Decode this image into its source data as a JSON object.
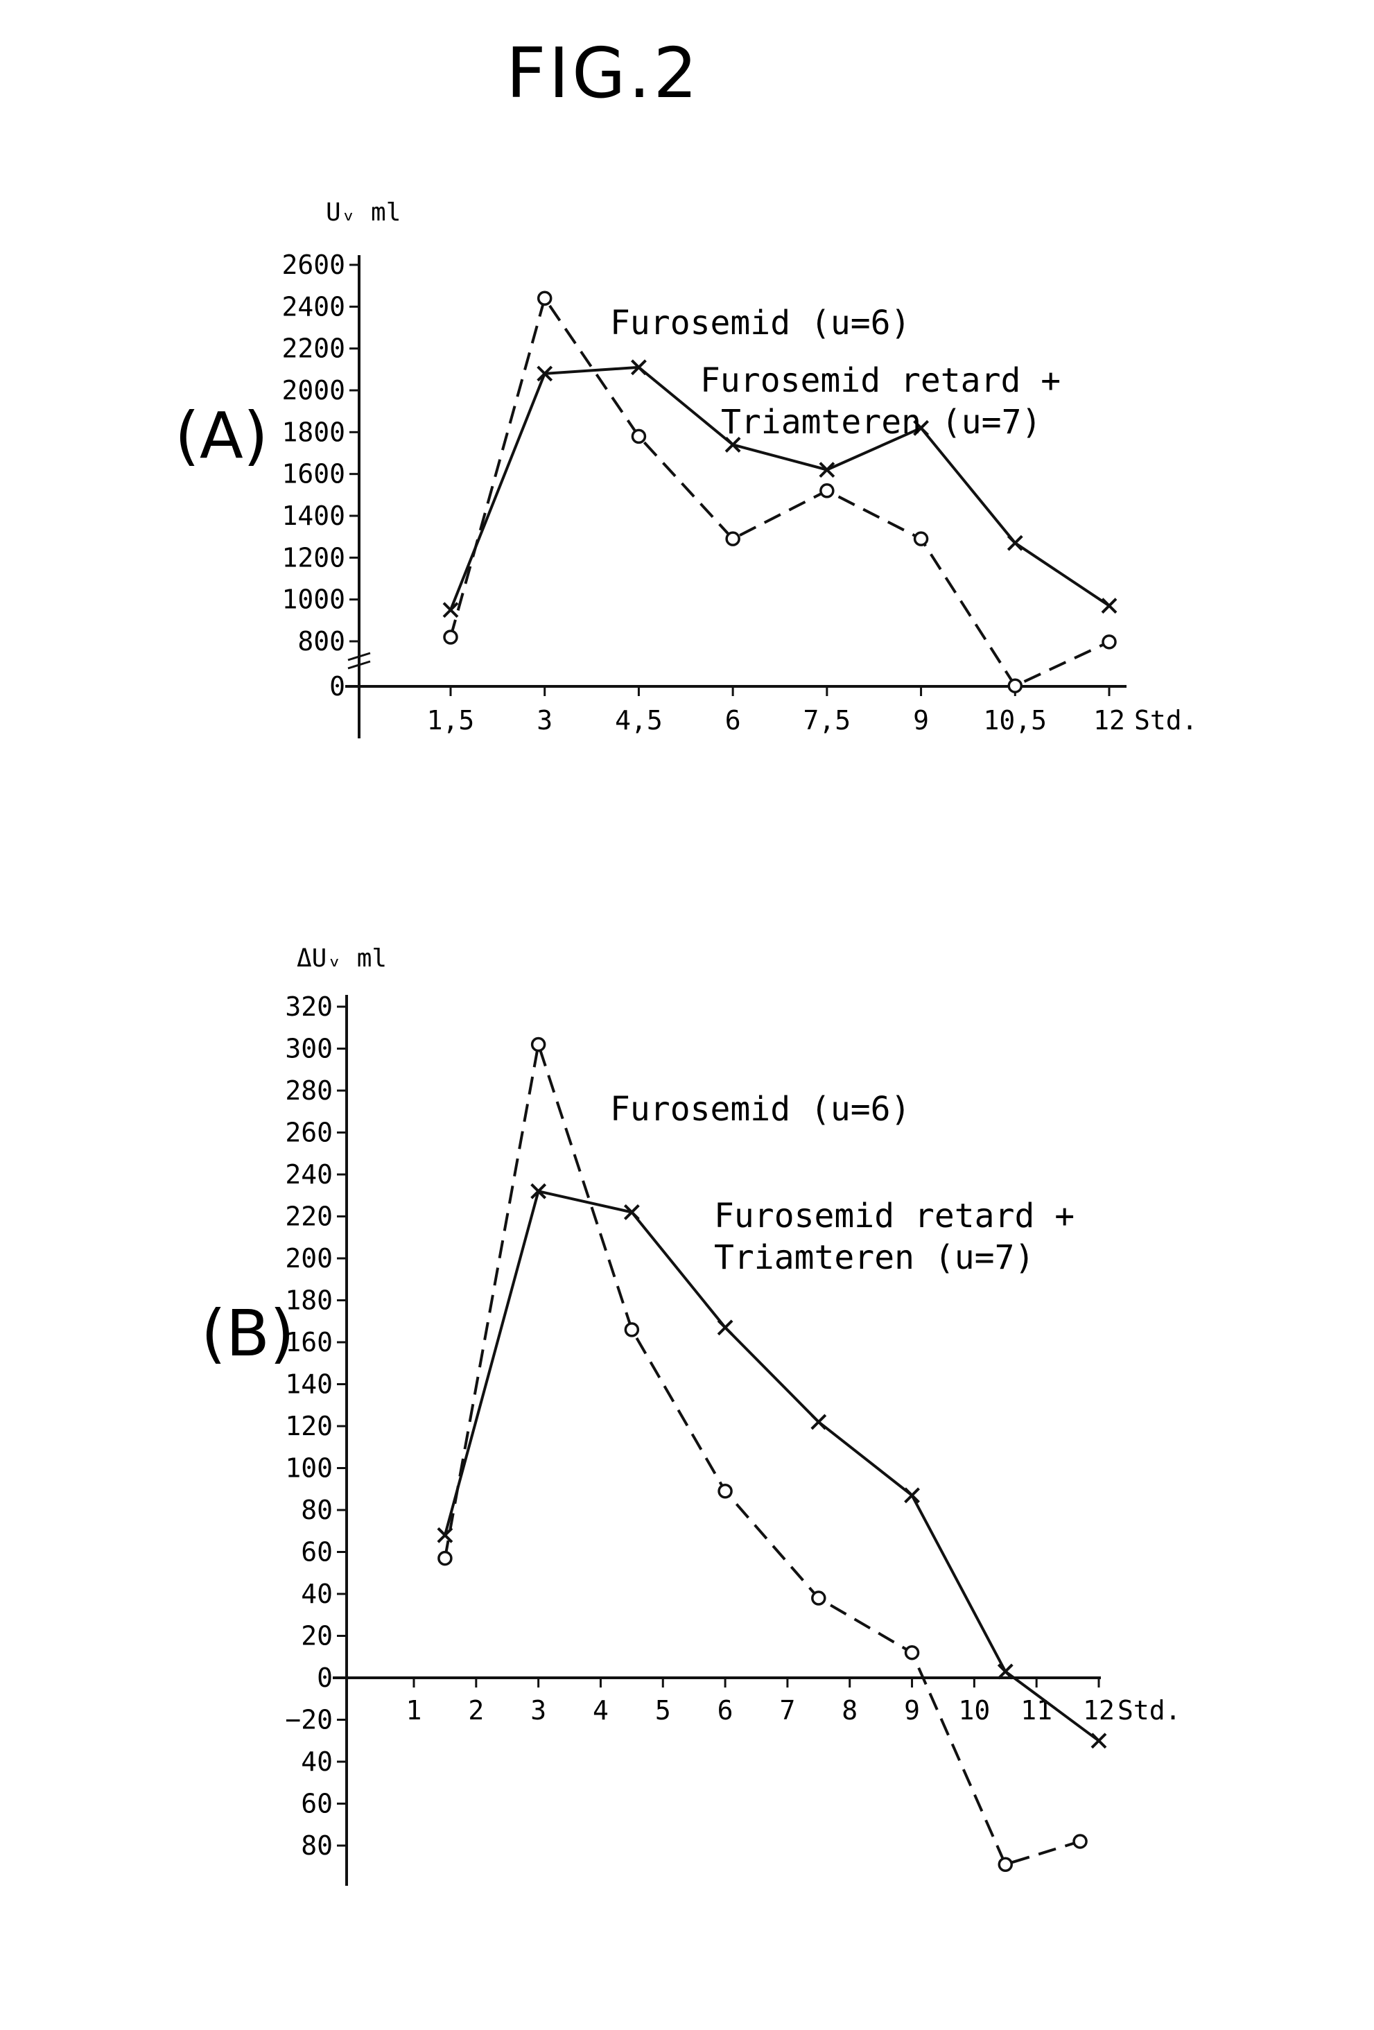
{
  "figure": {
    "title": "FIG.2"
  },
  "chart_data": [
    {
      "type": "line",
      "panel_label": "(A)",
      "ylabel": "Uᵥ ml",
      "xunit": "Std.",
      "x_tick_labels": [
        "1,5",
        "3",
        "4,5",
        "6",
        "7,5",
        "9",
        "10,5",
        "12"
      ],
      "y_ticks_upper": [
        800,
        1000,
        1200,
        1400,
        1600,
        1800,
        2000,
        2200,
        2400,
        2600
      ],
      "y_tick_zero": 0,
      "axis_break_between": [
        0,
        800
      ],
      "legend_texts": [
        "Furosemid (u=6)",
        "Furosemid retard +",
        "Triamteren   (u=7)"
      ],
      "series": [
        {
          "name": "Furosemid (u=6)",
          "style": "dashed",
          "marker": "circle",
          "x": [
            1.5,
            3,
            4.5,
            6,
            7.5,
            9,
            10.5,
            12
          ],
          "y": [
            820,
            2440,
            1780,
            1290,
            1520,
            1290,
            10,
            790
          ]
        },
        {
          "name": "Furosemid retard + Triamteren (u=7)",
          "style": "solid",
          "marker": "cross",
          "x": [
            1.5,
            3,
            4.5,
            6,
            7.5,
            9,
            10.5,
            12
          ],
          "y": [
            950,
            2080,
            2110,
            1740,
            1620,
            1820,
            1270,
            970
          ]
        }
      ]
    },
    {
      "type": "line",
      "panel_label": "(B)",
      "ylabel": "ΔUᵥ ml",
      "xunit": "Std.",
      "x_ticks": [
        1,
        2,
        3,
        4,
        5,
        6,
        7,
        8,
        9,
        10,
        11,
        12
      ],
      "y_tick_labels": [
        "80",
        "60",
        "40",
        "−20",
        "0",
        "20",
        "40",
        "60",
        "80",
        "100",
        "120",
        "140",
        "160",
        "180",
        "200",
        "220",
        "240",
        "260",
        "280",
        "300",
        "320"
      ],
      "y_tick_values": [
        -80,
        -60,
        -40,
        -20,
        0,
        20,
        40,
        60,
        80,
        100,
        120,
        140,
        160,
        180,
        200,
        220,
        240,
        260,
        280,
        300,
        320
      ],
      "legend_texts": [
        "Furosemid (u=6)",
        "Furosemid retard +",
        "Triamteren (u=7)"
      ],
      "series": [
        {
          "name": "Furosemid (u=6)",
          "style": "dashed",
          "marker": "circle",
          "x": [
            1.5,
            3,
            4.5,
            6,
            7.5,
            9,
            10.5,
            11.7
          ],
          "y": [
            57,
            302,
            166,
            89,
            38,
            12,
            -89,
            -78
          ]
        },
        {
          "name": "Furosemid retard + Triamteren (u=7)",
          "style": "solid",
          "marker": "cross",
          "x": [
            1.5,
            3,
            4.5,
            6,
            7.5,
            9,
            10.5,
            12
          ],
          "y": [
            68,
            232,
            222,
            167,
            122,
            87,
            3,
            -30
          ]
        }
      ]
    }
  ]
}
